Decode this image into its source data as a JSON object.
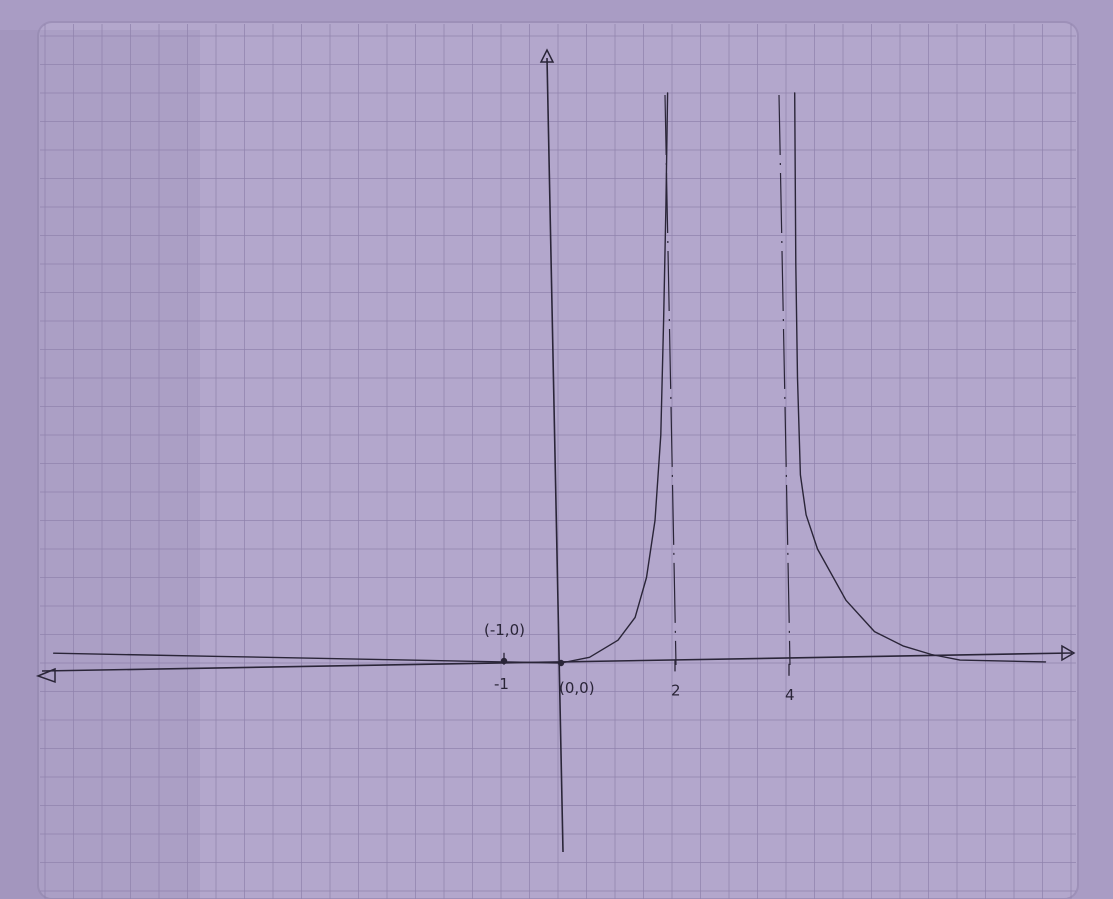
{
  "paper": {
    "background": "#a99cc4",
    "sheet_color": "#b3a7cc",
    "grid_color": "#8f82ac",
    "ink_color": "#2a2538"
  },
  "chart_data": {
    "type": "line",
    "title": "",
    "xlabel": "",
    "ylabel": "",
    "grid": true,
    "x_ticks": [
      {
        "value": -1,
        "label": "-1"
      },
      {
        "value": 2,
        "label": "2"
      },
      {
        "value": 4,
        "label": "4"
      }
    ],
    "vertical_asymptotes": [
      2,
      4
    ],
    "points": [
      {
        "x": -1,
        "y": 0,
        "label": "(-1,0)"
      },
      {
        "x": 0,
        "y": 0,
        "label": "(0,0)"
      }
    ],
    "series": [
      {
        "x": [
          -8.9,
          -6,
          -3,
          -1,
          -0.5,
          0
        ],
        "y": [
          0,
          0,
          0,
          0,
          0,
          0
        ]
      },
      {
        "x": [
          0,
          0.5,
          1,
          1.3,
          1.5,
          1.65,
          1.75,
          1.8,
          1.84,
          1.87
        ],
        "y": [
          0,
          0.1,
          0.4,
          0.8,
          1.5,
          2.5,
          4,
          6,
          8,
          10
        ]
      },
      {
        "x": [
          4.1,
          4.12,
          4.15,
          4.2,
          4.3,
          4.5,
          5,
          5.5,
          6,
          6.5,
          7,
          8.5
        ],
        "y": [
          10,
          7,
          5,
          3.3,
          2.6,
          2.0,
          1.1,
          0.55,
          0.3,
          0.15,
          0.05,
          0.02
        ]
      }
    ]
  }
}
